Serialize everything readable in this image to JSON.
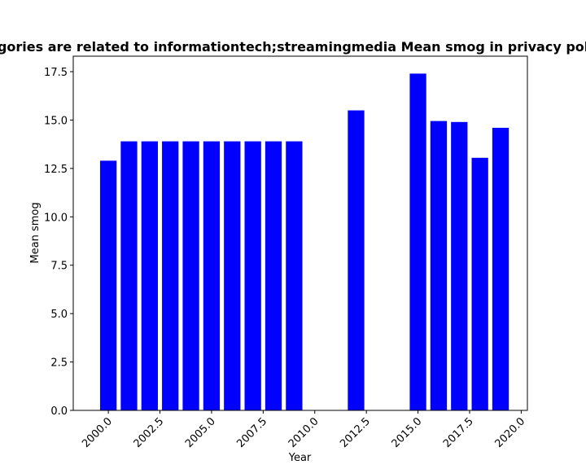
{
  "chart_data": {
    "type": "bar",
    "title": "Categories are related to informationtech;streamingmedia Mean smog in privacy policies",
    "xlabel": "Year",
    "ylabel": "Mean smog",
    "bar_color": "#0000ff",
    "xlim": [
      1998.3,
      2020.3
    ],
    "ylim": [
      0,
      18.3
    ],
    "bar_width": 0.8,
    "x": [
      2000,
      2001,
      2002,
      2003,
      2004,
      2005,
      2006,
      2007,
      2008,
      2009,
      2012,
      2015,
      2016,
      2017,
      2018,
      2019
    ],
    "values": [
      12.9,
      13.9,
      13.9,
      13.9,
      13.9,
      13.9,
      13.9,
      13.9,
      13.9,
      13.9,
      15.5,
      17.4,
      14.95,
      14.9,
      13.05,
      14.6
    ],
    "x_ticks": [
      2000,
      2002.5,
      2005,
      2007.5,
      2010,
      2012.5,
      2015,
      2017.5,
      2020
    ],
    "x_tick_labels": [
      "2000.0",
      "2002.5",
      "2005.0",
      "2007.5",
      "2010.0",
      "2012.5",
      "2015.0",
      "2017.5",
      "2020.0"
    ],
    "y_ticks": [
      0,
      2.5,
      5,
      7.5,
      10,
      12.5,
      15,
      17.5
    ],
    "y_tick_labels": [
      "0.0",
      "2.5",
      "5.0",
      "7.5",
      "10.0",
      "12.5",
      "15.0",
      "17.5"
    ],
    "grid": false,
    "legend": "none"
  }
}
